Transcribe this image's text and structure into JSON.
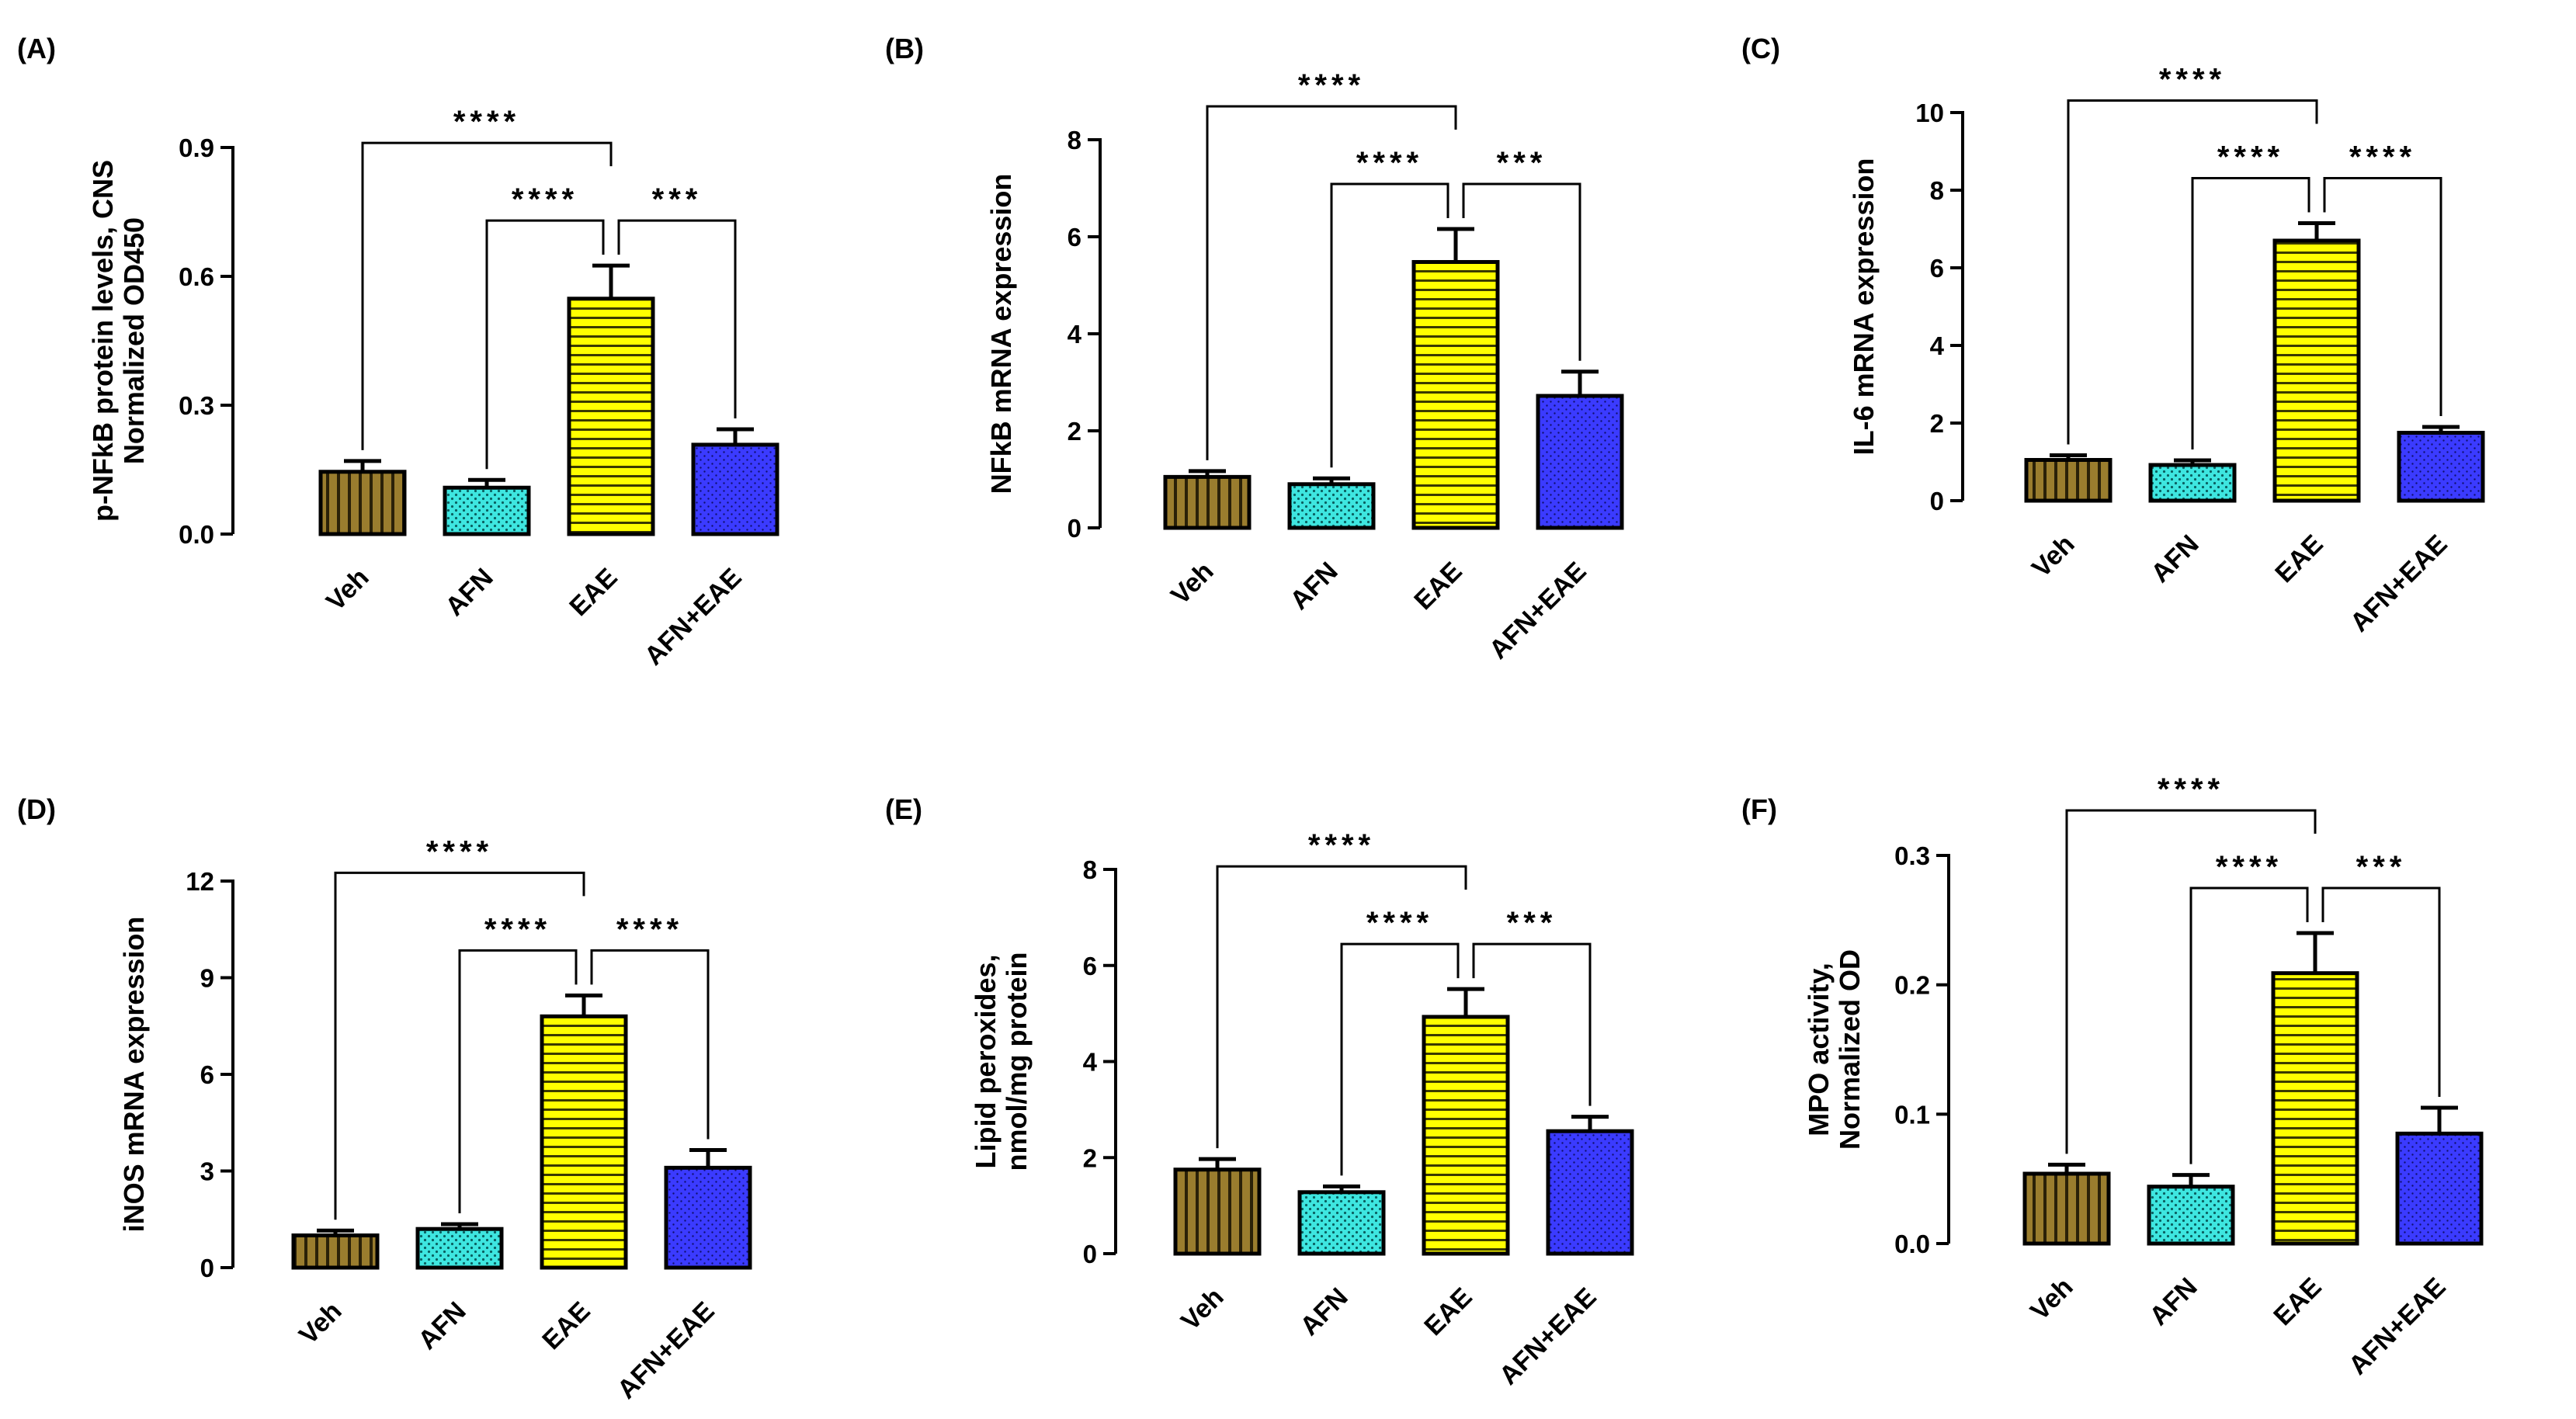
{
  "colors": {
    "Veh": "#9a7d2e",
    "AFN": "#3ee6e0",
    "EAE": "#ffff00",
    "AFN+EAE": "#3b3bff",
    "axis": "#000000",
    "background": "#ffffff"
  },
  "chart_data": [
    {
      "panel_label": "(A)",
      "type": "bar",
      "categories": [
        "Veh",
        "AFN",
        "EAE",
        "AFN+EAE"
      ],
      "values": [
        0.145,
        0.108,
        0.548,
        0.208
      ],
      "errors": [
        0.025,
        0.018,
        0.077,
        0.036
      ],
      "ylabel_lines": [
        "p-NFkB protein levels, CNS",
        "Normalized OD450"
      ],
      "ylim": [
        0,
        0.9
      ],
      "yticks": [
        "0.0",
        "0.3",
        "0.6",
        "0.9"
      ],
      "significance": [
        {
          "from": 0,
          "to": 2,
          "label": "****",
          "level": 1
        },
        {
          "from": 1,
          "to": 2,
          "label": "****",
          "level": 0
        },
        {
          "from": 2,
          "to": 3,
          "label": "***",
          "level": 0
        }
      ]
    },
    {
      "panel_label": "(B)",
      "type": "bar",
      "categories": [
        "Veh",
        "AFN",
        "EAE",
        "AFN+EAE"
      ],
      "values": [
        1.05,
        0.9,
        5.48,
        2.72
      ],
      "errors": [
        0.12,
        0.12,
        0.68,
        0.5
      ],
      "ylabel_lines": [
        "NFkB mRNA expression"
      ],
      "ylim": [
        0,
        8
      ],
      "yticks": [
        "0",
        "2",
        "4",
        "6",
        "8"
      ],
      "significance": [
        {
          "from": 0,
          "to": 2,
          "label": "****",
          "level": 1
        },
        {
          "from": 1,
          "to": 2,
          "label": "****",
          "level": 0
        },
        {
          "from": 2,
          "to": 3,
          "label": "***",
          "level": 0
        }
      ]
    },
    {
      "panel_label": "(C)",
      "type": "bar",
      "categories": [
        "Veh",
        "AFN",
        "EAE",
        "AFN+EAE"
      ],
      "values": [
        1.05,
        0.92,
        6.7,
        1.75
      ],
      "errors": [
        0.12,
        0.12,
        0.45,
        0.15
      ],
      "ylabel_lines": [
        "IL-6 mRNA expression"
      ],
      "ylim": [
        0,
        10
      ],
      "yticks": [
        "0",
        "2",
        "4",
        "6",
        "8",
        "10"
      ],
      "significance": [
        {
          "from": 0,
          "to": 2,
          "label": "****",
          "level": 1
        },
        {
          "from": 1,
          "to": 2,
          "label": "****",
          "level": 0
        },
        {
          "from": 2,
          "to": 3,
          "label": "****",
          "level": 0
        }
      ]
    },
    {
      "panel_label": "(D)",
      "type": "bar",
      "categories": [
        "Veh",
        "AFN",
        "EAE",
        "AFN+EAE"
      ],
      "values": [
        1.0,
        1.2,
        7.8,
        3.1
      ],
      "errors": [
        0.15,
        0.15,
        0.65,
        0.55
      ],
      "ylabel_lines": [
        "iNOS mRNA expression"
      ],
      "ylim": [
        0,
        12
      ],
      "yticks": [
        "0",
        "3",
        "6",
        "9",
        "12"
      ],
      "significance": [
        {
          "from": 0,
          "to": 2,
          "label": "****",
          "level": 1
        },
        {
          "from": 1,
          "to": 2,
          "label": "****",
          "level": 0
        },
        {
          "from": 2,
          "to": 3,
          "label": "****",
          "level": 0
        }
      ]
    },
    {
      "panel_label": "(E)",
      "type": "bar",
      "categories": [
        "Veh",
        "AFN",
        "EAE",
        "AFN+EAE"
      ],
      "values": [
        1.75,
        1.28,
        4.93,
        2.55
      ],
      "errors": [
        0.22,
        0.12,
        0.58,
        0.3
      ],
      "ylabel_lines": [
        "Lipid peroxides,",
        "nmol/mg protein"
      ],
      "ylim": [
        0,
        8
      ],
      "yticks": [
        "0",
        "2",
        "4",
        "6",
        "8"
      ],
      "significance": [
        {
          "from": 0,
          "to": 2,
          "label": "****",
          "level": 1
        },
        {
          "from": 1,
          "to": 2,
          "label": "****",
          "level": 0
        },
        {
          "from": 2,
          "to": 3,
          "label": "***",
          "level": 0
        }
      ]
    },
    {
      "panel_label": "(F)",
      "type": "bar",
      "categories": [
        "Veh",
        "AFN",
        "EAE",
        "AFN+EAE"
      ],
      "values": [
        0.054,
        0.044,
        0.209,
        0.085
      ],
      "errors": [
        0.007,
        0.009,
        0.031,
        0.02
      ],
      "ylabel_lines": [
        "MPO activity,",
        "Normalized  OD"
      ],
      "ylim": [
        0,
        0.3
      ],
      "yticks": [
        "0.0",
        "0.1",
        "0.2",
        "0.3"
      ],
      "significance": [
        {
          "from": 0,
          "to": 2,
          "label": "****",
          "level": 1
        },
        {
          "from": 1,
          "to": 2,
          "label": "****",
          "level": 0
        },
        {
          "from": 2,
          "to": 3,
          "label": "***",
          "level": 0
        }
      ]
    }
  ]
}
